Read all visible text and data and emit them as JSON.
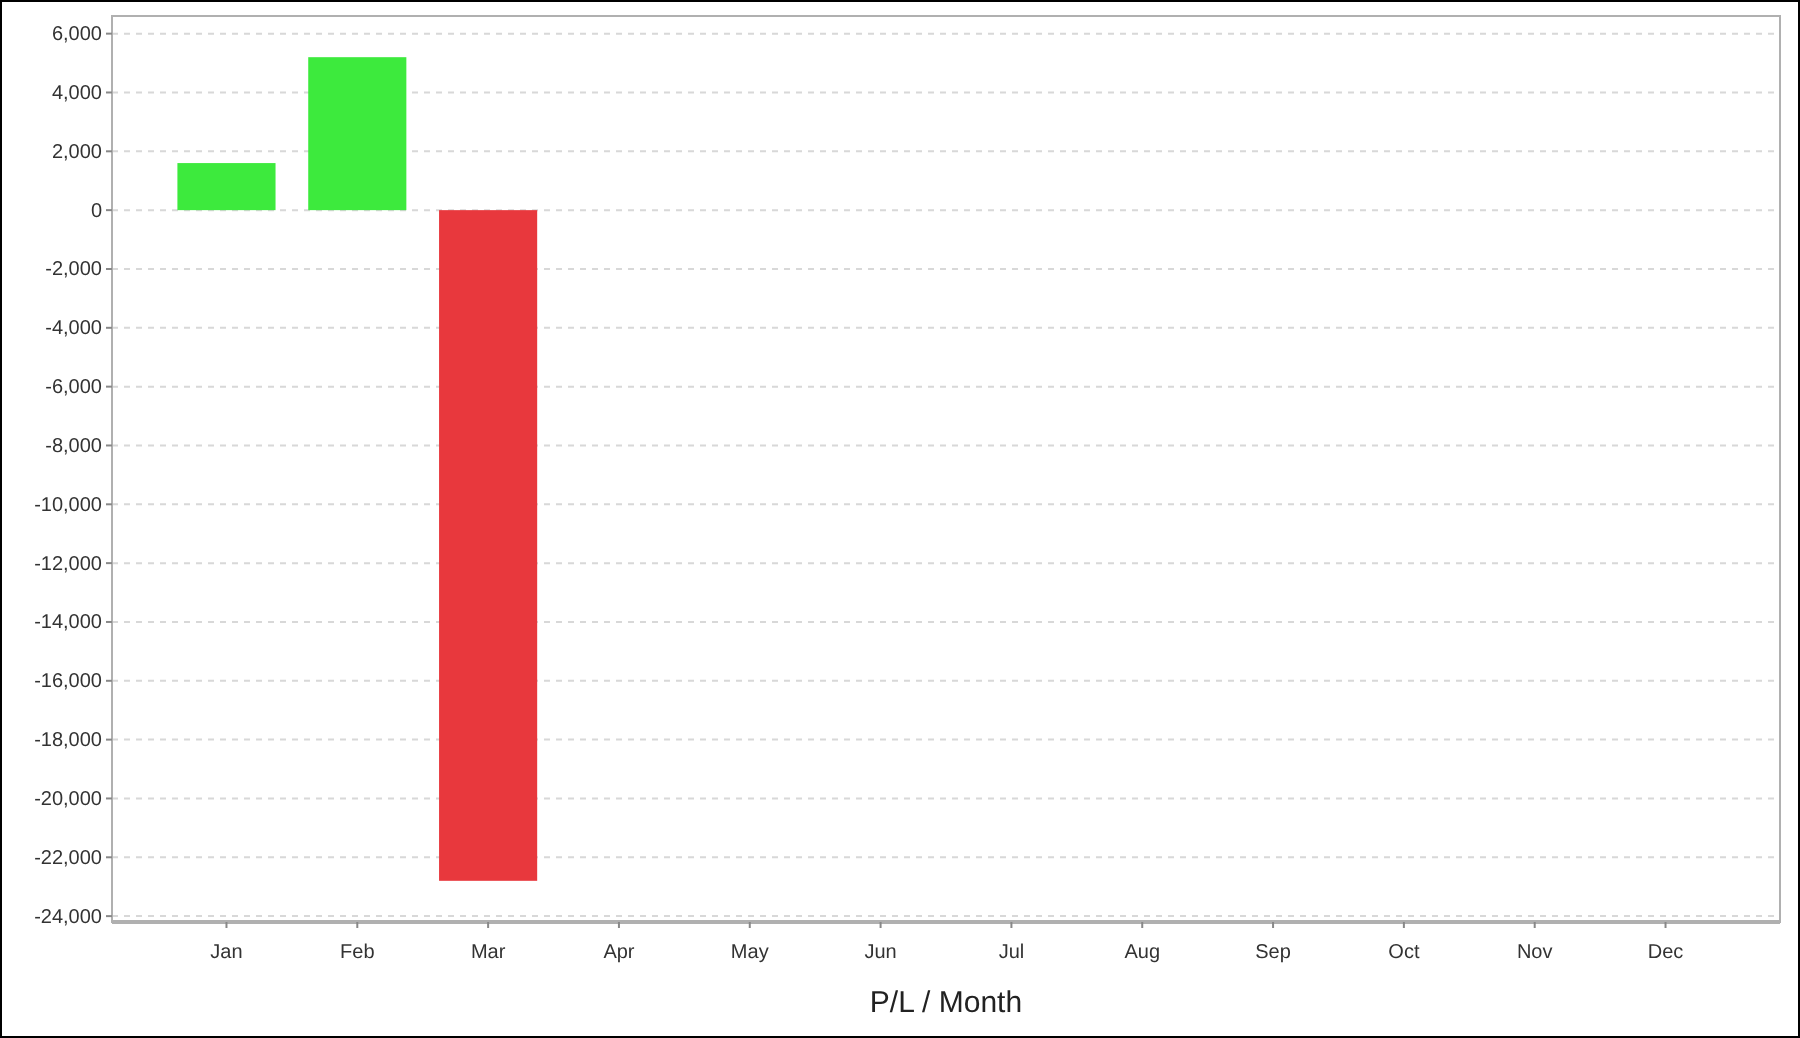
{
  "chart_data": {
    "type": "bar",
    "xlabel": "P/L / Month",
    "categories": [
      "Jan",
      "Feb",
      "Mar",
      "Apr",
      "May",
      "Jun",
      "Jul",
      "Aug",
      "Sep",
      "Oct",
      "Nov",
      "Dec"
    ],
    "values": [
      1600,
      5200,
      -22800,
      null,
      null,
      null,
      null,
      null,
      null,
      null,
      null,
      null
    ],
    "colors": [
      "#3dea3d",
      "#3dea3d",
      "#e8383d",
      null,
      null,
      null,
      null,
      null,
      null,
      null,
      null,
      null
    ],
    "ylim": [
      -24200,
      6600
    ],
    "yticks": [
      {
        "value": 6000,
        "label": "6,000"
      },
      {
        "value": 4000,
        "label": "4,000"
      },
      {
        "value": 2000,
        "label": "2,000"
      },
      0,
      {
        "value": -2000,
        "label": "-2,000"
      },
      {
        "value": -4000,
        "label": "-4,000"
      },
      {
        "value": -6000,
        "label": "-6,000"
      },
      {
        "value": -8000,
        "label": "-8,000"
      },
      {
        "value": -10000,
        "label": "-10,000"
      },
      {
        "value": -12000,
        "label": "-12,000"
      },
      {
        "value": -14000,
        "label": "-14,000"
      },
      {
        "value": -16000,
        "label": "-16,000"
      },
      {
        "value": -18000,
        "label": "-18,000"
      },
      {
        "value": -20000,
        "label": "-20,000"
      },
      {
        "value": -22000,
        "label": "-22,000"
      },
      {
        "value": -24000,
        "label": "-24,000"
      }
    ],
    "grid": "y"
  }
}
